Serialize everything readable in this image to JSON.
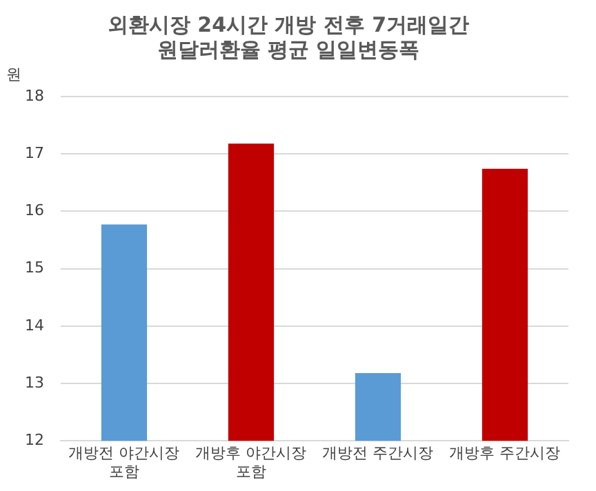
{
  "chart_data": {
    "type": "bar",
    "title": "외환시장 24시간 개방 전후 7거래일간\n원달러환율 평균 일일변동폭",
    "ylabel": "원",
    "categories": [
      "개방전 야간시장\n포함",
      "개방후 야간시장\n포함",
      "개방전 주간시장",
      "개방후 주간시장"
    ],
    "values": [
      15.77,
      17.18,
      13.18,
      16.74
    ],
    "colors": [
      "#5b9bd5",
      "#c00000",
      "#5b9bd5",
      "#c00000"
    ],
    "ylim": [
      12,
      18
    ],
    "yticks": [
      12,
      13,
      14,
      15,
      16,
      17,
      18
    ],
    "grid": "y",
    "legend": false
  }
}
